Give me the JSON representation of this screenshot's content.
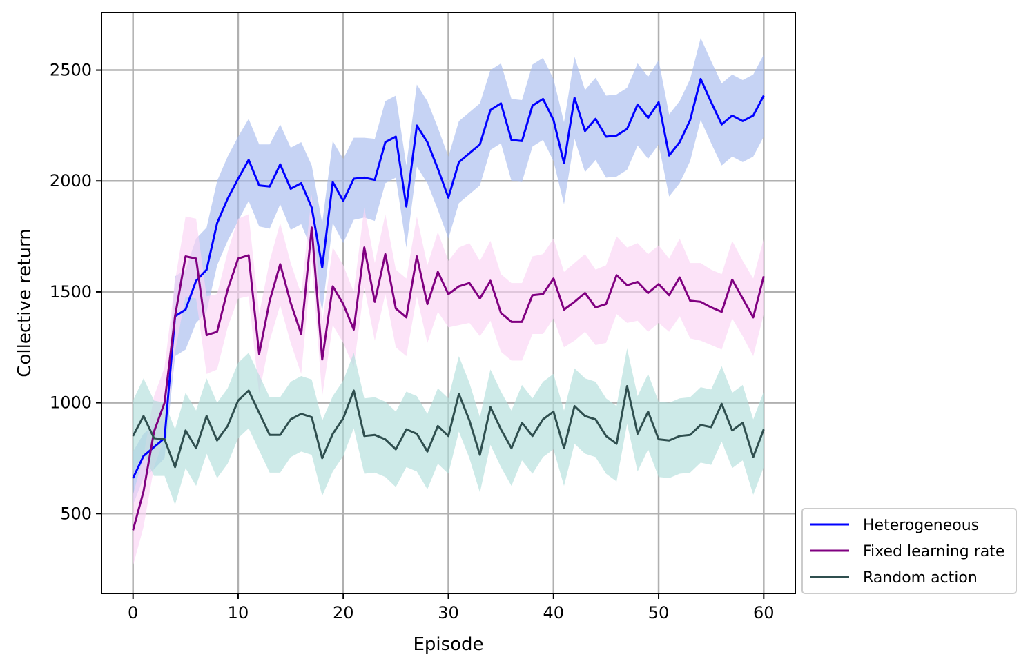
{
  "chart_data": {
    "type": "line",
    "title": "",
    "xlabel": "Episode",
    "ylabel": "Collective return",
    "xlim": [
      -3,
      63
    ],
    "ylim": [
      140,
      2760
    ],
    "xticks": [
      0,
      10,
      20,
      30,
      40,
      50,
      60
    ],
    "xtick_labels": [
      "0",
      "10",
      "20",
      "30",
      "40",
      "50",
      "60"
    ],
    "yticks": [
      500,
      1000,
      1500,
      2000,
      2500
    ],
    "ytick_labels": [
      "500",
      "1000",
      "1500",
      "2000",
      "2500"
    ],
    "grid": true,
    "legend_position": "outside-lower-right",
    "x": [
      0,
      1,
      2,
      3,
      4,
      5,
      6,
      7,
      8,
      9,
      10,
      11,
      12,
      13,
      14,
      15,
      16,
      17,
      18,
      19,
      20,
      21,
      22,
      23,
      24,
      25,
      26,
      27,
      28,
      29,
      30,
      31,
      32,
      33,
      34,
      35,
      36,
      37,
      38,
      39,
      40,
      41,
      42,
      43,
      44,
      45,
      46,
      47,
      48,
      49,
      50,
      51,
      52,
      53,
      54,
      55,
      56,
      57,
      58,
      59,
      60
    ],
    "series": [
      {
        "name": "Heterogeneous",
        "color": "#0000ff",
        "band_color": "#a8bcee",
        "values": [
          660,
          760,
          800,
          840,
          1390,
          1420,
          1550,
          1600,
          1810,
          1920,
          2010,
          2095,
          1980,
          1975,
          2075,
          1965,
          1990,
          1880,
          1610,
          1995,
          1910,
          2010,
          2015,
          2005,
          2175,
          2200,
          1885,
          2250,
          2175,
          2055,
          1925,
          2085,
          2125,
          2165,
          2320,
          2350,
          2185,
          2180,
          2340,
          2370,
          2275,
          2080,
          2375,
          2225,
          2280,
          2200,
          2205,
          2235,
          2345,
          2285,
          2355,
          2115,
          2175,
          2275,
          2460,
          2355,
          2255,
          2295,
          2270,
          2295,
          2385
        ],
        "upper": [
          780,
          860,
          900,
          930,
          1570,
          1600,
          1740,
          1790,
          2000,
          2110,
          2200,
          2280,
          2165,
          2165,
          2255,
          2150,
          2175,
          2070,
          1810,
          2180,
          2100,
          2195,
          2195,
          2190,
          2360,
          2385,
          2070,
          2435,
          2360,
          2240,
          2110,
          2270,
          2310,
          2350,
          2500,
          2530,
          2370,
          2365,
          2525,
          2555,
          2460,
          2265,
          2560,
          2410,
          2465,
          2385,
          2390,
          2420,
          2530,
          2470,
          2545,
          2300,
          2360,
          2460,
          2645,
          2540,
          2440,
          2480,
          2455,
          2480,
          2570
        ],
        "lower": [
          540,
          660,
          700,
          750,
          1210,
          1240,
          1360,
          1410,
          1620,
          1730,
          1820,
          1910,
          1795,
          1785,
          1895,
          1780,
          1805,
          1690,
          1410,
          1810,
          1720,
          1825,
          1835,
          1820,
          1990,
          2015,
          1700,
          2065,
          1990,
          1870,
          1740,
          1900,
          1940,
          1980,
          2140,
          2170,
          2000,
          1995,
          2155,
          2185,
          2090,
          1895,
          2190,
          2040,
          2095,
          2015,
          2020,
          2050,
          2160,
          2100,
          2165,
          1930,
          1990,
          2090,
          2275,
          2170,
          2070,
          2110,
          2085,
          2110,
          2200
        ]
      },
      {
        "name": "Fixed learning rate",
        "color": "#800080",
        "band_color": "#fad4f5",
        "values": [
          425,
          600,
          870,
          1000,
          1390,
          1660,
          1650,
          1305,
          1320,
          1510,
          1650,
          1665,
          1220,
          1460,
          1625,
          1450,
          1310,
          1790,
          1195,
          1525,
          1445,
          1330,
          1700,
          1455,
          1670,
          1425,
          1385,
          1660,
          1445,
          1590,
          1490,
          1525,
          1540,
          1470,
          1550,
          1405,
          1365,
          1365,
          1485,
          1490,
          1560,
          1420,
          1455,
          1495,
          1430,
          1445,
          1575,
          1530,
          1545,
          1495,
          1535,
          1485,
          1565,
          1460,
          1455,
          1430,
          1410,
          1555,
          1470,
          1385,
          1570
        ],
        "upper": [
          585,
          760,
          1030,
          1160,
          1550,
          1840,
          1830,
          1480,
          1490,
          1680,
          1830,
          1850,
          1400,
          1640,
          1810,
          1630,
          1490,
          1940,
          1360,
          1700,
          1620,
          1500,
          1880,
          1630,
          1850,
          1600,
          1560,
          1840,
          1620,
          1770,
          1640,
          1700,
          1720,
          1640,
          1730,
          1580,
          1540,
          1540,
          1660,
          1670,
          1740,
          1590,
          1630,
          1670,
          1600,
          1620,
          1750,
          1700,
          1720,
          1670,
          1710,
          1650,
          1740,
          1630,
          1630,
          1600,
          1580,
          1730,
          1640,
          1560,
          1740
        ],
        "lower": [
          265,
          440,
          710,
          840,
          1230,
          1480,
          1470,
          1130,
          1150,
          1340,
          1470,
          1480,
          1040,
          1280,
          1440,
          1270,
          1130,
          1640,
          1030,
          1350,
          1270,
          1160,
          1520,
          1280,
          1490,
          1250,
          1210,
          1480,
          1270,
          1410,
          1340,
          1350,
          1360,
          1300,
          1370,
          1230,
          1190,
          1190,
          1310,
          1310,
          1380,
          1250,
          1280,
          1320,
          1260,
          1270,
          1400,
          1360,
          1370,
          1320,
          1360,
          1320,
          1390,
          1290,
          1280,
          1260,
          1240,
          1380,
          1300,
          1210,
          1400
        ]
      },
      {
        "name": "Random action",
        "color": "#2f4f4f",
        "band_color": "#b2dfdb",
        "values": [
          850,
          940,
          840,
          835,
          710,
          875,
          795,
          940,
          830,
          895,
          1010,
          1055,
          955,
          855,
          855,
          925,
          950,
          935,
          750,
          860,
          930,
          1055,
          850,
          855,
          835,
          790,
          880,
          860,
          780,
          895,
          850,
          1040,
          920,
          765,
          980,
          880,
          795,
          910,
          850,
          925,
          960,
          795,
          985,
          940,
          925,
          850,
          815,
          1075,
          860,
          960,
          835,
          830,
          850,
          855,
          900,
          890,
          995,
          875,
          910,
          755,
          880
        ],
        "upper": [
          1010,
          1110,
          1010,
          1000,
          880,
          1045,
          965,
          1110,
          1000,
          1065,
          1180,
          1225,
          1125,
          1025,
          1025,
          1095,
          1120,
          1105,
          920,
          1030,
          1100,
          1225,
          1020,
          1025,
          1005,
          960,
          1050,
          1030,
          950,
          1065,
          1020,
          1210,
          1090,
          935,
          1150,
          1050,
          965,
          1080,
          1020,
          1095,
          1130,
          965,
          1155,
          1110,
          1095,
          1020,
          985,
          1245,
          1030,
          1130,
          1005,
          1000,
          1020,
          1025,
          1070,
          1060,
          1165,
          1045,
          1080,
          925,
          1050
        ],
        "lower": [
          690,
          770,
          670,
          670,
          540,
          705,
          625,
          770,
          660,
          725,
          840,
          885,
          785,
          685,
          685,
          755,
          780,
          765,
          580,
          690,
          760,
          885,
          680,
          685,
          665,
          620,
          710,
          690,
          610,
          725,
          680,
          870,
          750,
          595,
          810,
          710,
          625,
          740,
          680,
          755,
          790,
          625,
          815,
          770,
          755,
          680,
          645,
          905,
          690,
          790,
          665,
          660,
          680,
          685,
          730,
          720,
          825,
          705,
          740,
          585,
          710
        ]
      }
    ]
  }
}
